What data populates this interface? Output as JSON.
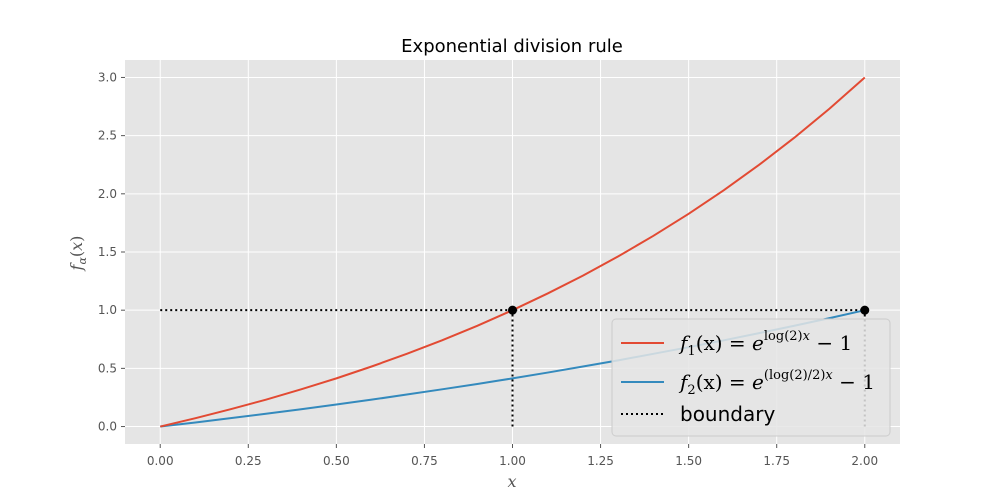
{
  "chart_data": {
    "type": "line",
    "title": "Exponential division rule",
    "xlabel": "x",
    "ylabel": "f_α(x)",
    "xlim": [
      -0.1,
      2.1
    ],
    "ylim": [
      -0.15,
      3.15
    ],
    "xticks": [
      "0.00",
      "0.25",
      "0.50",
      "0.75",
      "1.00",
      "1.25",
      "1.50",
      "1.75",
      "2.00"
    ],
    "yticks": [
      "0.0",
      "0.5",
      "1.0",
      "1.5",
      "2.0",
      "2.5",
      "3.0"
    ],
    "grid": true,
    "legend_position": "lower-right",
    "series": [
      {
        "name": "f₁(x) = e^{log(2)x} − 1",
        "color": "#E24A33",
        "style": "solid",
        "x": [
          0,
          0.1,
          0.2,
          0.3,
          0.4,
          0.5,
          0.6,
          0.7,
          0.8,
          0.9,
          1.0,
          1.1,
          1.2,
          1.3,
          1.4,
          1.5,
          1.6,
          1.7,
          1.8,
          1.9,
          2.0
        ],
        "y": [
          0,
          0.072,
          0.149,
          0.231,
          0.32,
          0.414,
          0.516,
          0.625,
          0.741,
          0.866,
          1.0,
          1.144,
          1.297,
          1.462,
          1.639,
          1.828,
          2.031,
          2.249,
          2.482,
          2.732,
          3.0
        ]
      },
      {
        "name": "f₂(x) = e^{(log(2)/2)x} − 1",
        "color": "#348ABD",
        "style": "solid",
        "x": [
          0,
          0.1,
          0.2,
          0.3,
          0.4,
          0.5,
          0.6,
          0.7,
          0.8,
          0.9,
          1.0,
          1.1,
          1.2,
          1.3,
          1.4,
          1.5,
          1.6,
          1.7,
          1.8,
          1.9,
          2.0
        ],
        "y": [
          0,
          0.035,
          0.072,
          0.11,
          0.149,
          0.189,
          0.231,
          0.275,
          0.32,
          0.366,
          0.414,
          0.464,
          0.516,
          0.569,
          0.625,
          0.682,
          0.741,
          0.803,
          0.866,
          0.932,
          1.0
        ]
      },
      {
        "name": "boundary",
        "color": "#000000",
        "style": "dotted",
        "segments": [
          {
            "x": [
              0,
              2
            ],
            "y": [
              1,
              1
            ]
          },
          {
            "x": [
              1,
              1
            ],
            "y": [
              0,
              1
            ]
          },
          {
            "x": [
              2,
              2
            ],
            "y": [
              0,
              1
            ]
          }
        ]
      }
    ],
    "markers": [
      {
        "x": 1,
        "y": 1,
        "color": "#000000"
      },
      {
        "x": 2,
        "y": 1,
        "color": "#000000"
      }
    ],
    "legend": {
      "f1": {
        "prefix": "f",
        "sub": "1",
        "args": "(x) = ",
        "base": "e",
        "sup": "log(2)",
        "supvar": "x",
        "tail": " − 1"
      },
      "f2": {
        "prefix": "f",
        "sub": "2",
        "args": "(x) = ",
        "base": "e",
        "sup": "(log(2)/2)",
        "supvar": "x",
        "tail": " − 1"
      },
      "boundary": "boundary"
    },
    "style": {
      "axes_bg": "#E5E5E5",
      "grid_color": "#FFFFFF",
      "legend_bg": "#E5E5E5",
      "legend_border": "#CCCCCC"
    }
  }
}
